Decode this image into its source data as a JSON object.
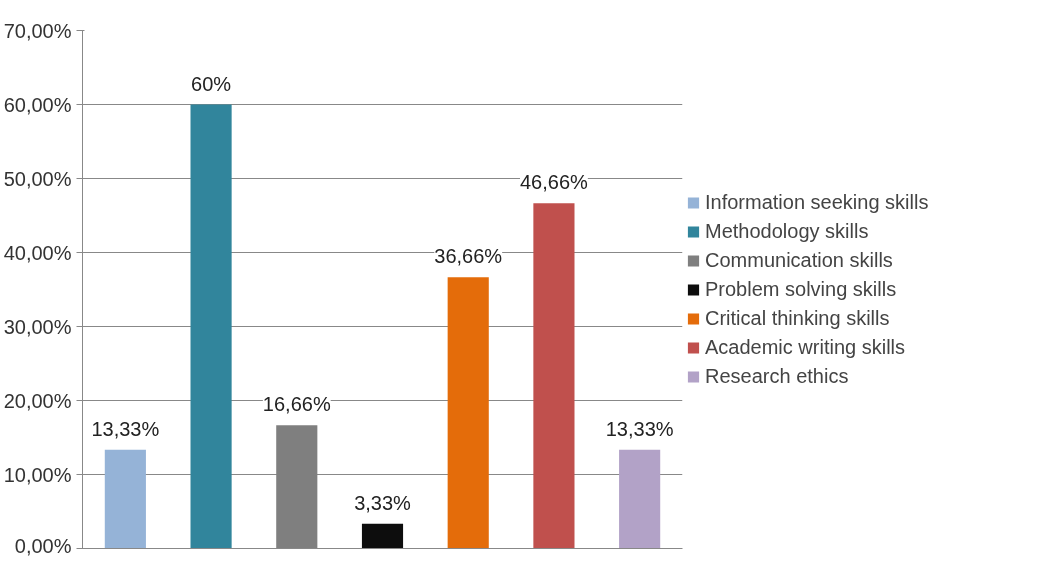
{
  "chart_data": {
    "type": "bar",
    "categories": [
      null
    ],
    "series": [
      {
        "name": "Information seeking skills",
        "color": "#95b3d7",
        "values": [
          13.33
        ],
        "value_labels": [
          "13,33%"
        ]
      },
      {
        "name": "Methodology skills",
        "color": "#31859c",
        "values": [
          60
        ],
        "value_labels": [
          "60%"
        ]
      },
      {
        "name": "Communication skills",
        "color": "#7f7f7f",
        "values": [
          16.66
        ],
        "value_labels": [
          "16,66%"
        ]
      },
      {
        "name": "Problem solving skills",
        "color": "#0d0d0d",
        "values": [
          3.33
        ],
        "value_labels": [
          "3,33%"
        ]
      },
      {
        "name": "Critical thinking skills",
        "color": "#e46c0a",
        "values": [
          36.66
        ],
        "value_labels": [
          "36,66%"
        ]
      },
      {
        "name": "Academic writing skills",
        "color": "#c0504d",
        "values": [
          46.66
        ],
        "value_labels": [
          "46,66%"
        ]
      },
      {
        "name": "Research ethics",
        "color": "#b2a2c7",
        "values": [
          13.33
        ],
        "value_labels": [
          "13,33%"
        ]
      }
    ],
    "ylim": [
      0,
      70
    ],
    "yticks": [
      {
        "value": 0,
        "label": "0,00%"
      },
      {
        "value": 10,
        "label": "10,00%"
      },
      {
        "value": 20,
        "label": "20,00%"
      },
      {
        "value": 30,
        "label": "30,00%"
      },
      {
        "value": 40,
        "label": "40,00%"
      },
      {
        "value": 50,
        "label": "50,00%"
      },
      {
        "value": 60,
        "label": "60,00%"
      },
      {
        "value": 70,
        "label": "70,00%"
      }
    ],
    "grid": "y",
    "legend": "right",
    "tick_labels": "y"
  }
}
